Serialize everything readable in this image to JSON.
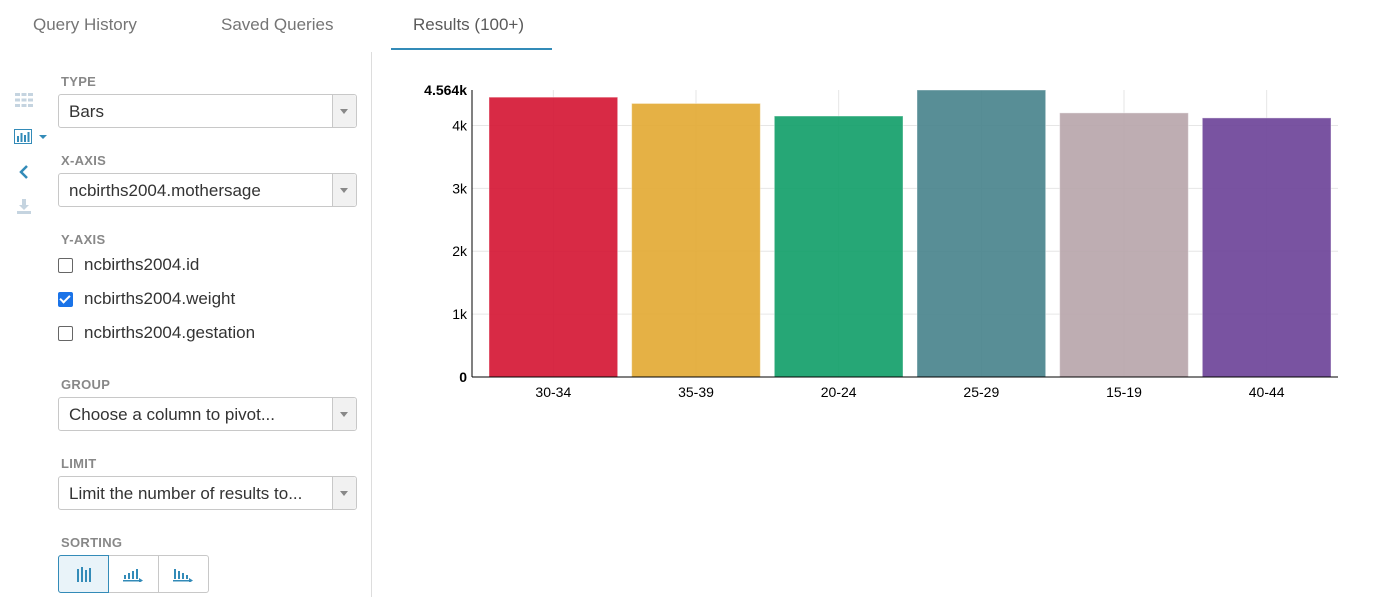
{
  "tabs": [
    {
      "label": "Query History"
    },
    {
      "label": "Saved Queries"
    },
    {
      "label": "Results (100+)"
    }
  ],
  "panel": {
    "type_label": "TYPE",
    "type_value": "Bars",
    "xaxis_label": "X-AXIS",
    "xaxis_value": "ncbirths2004.mothersage",
    "yaxis_label": "Y-AXIS",
    "yaxis_options": [
      {
        "label": "ncbirths2004.id",
        "checked": false
      },
      {
        "label": "ncbirths2004.weight",
        "checked": true
      },
      {
        "label": "ncbirths2004.gestation",
        "checked": false
      }
    ],
    "group_label": "GROUP",
    "group_placeholder": "Choose a column to pivot...",
    "limit_label": "LIMIT",
    "limit_placeholder": "Limit the number of results to...",
    "sorting_label": "SORTING"
  },
  "chart_data": {
    "type": "bar",
    "categories": [
      "30-34",
      "35-39",
      "20-24",
      "25-29",
      "15-19",
      "40-44"
    ],
    "values": [
      4450,
      4350,
      4150,
      4564,
      4200,
      4120
    ],
    "ylim": [
      0,
      4564
    ],
    "yticks": [
      "0",
      "1k",
      "2k",
      "3k",
      "4k"
    ],
    "ymax_label": "4.564k",
    "colors": [
      "#d51835",
      "#e3aa35",
      "#14a06a",
      "#4a848d",
      "#b9a6ab",
      "#6e4499"
    ],
    "grid": true
  }
}
